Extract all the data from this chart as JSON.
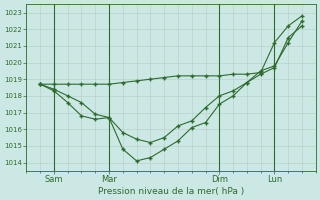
{
  "background_color": "#cce8e4",
  "grid_major_color": "#b8d4d0",
  "grid_minor_color": "#d4e8e4",
  "line_color": "#2d6b2d",
  "title": "Pression niveau de la mer( hPa )",
  "ylim": [
    1013.5,
    1023.5
  ],
  "yticks": [
    1014,
    1015,
    1016,
    1017,
    1018,
    1019,
    1020,
    1021,
    1022,
    1023
  ],
  "xlim": [
    0,
    10.5
  ],
  "xtick_positions": [
    1,
    3,
    7,
    9
  ],
  "xtick_labels": [
    "Sam",
    "Mar",
    "Dim",
    "Lun"
  ],
  "vline_positions": [
    1,
    3,
    7,
    9
  ],
  "line1_x": [
    0.5,
    1.0,
    1.5,
    2.0,
    2.5,
    3.0,
    3.5,
    4.0,
    4.5,
    5.0,
    5.5,
    6.0,
    6.5,
    7.0,
    7.5,
    8.0,
    8.5,
    9.0,
    9.5,
    10.0
  ],
  "line1_y": [
    1018.7,
    1018.7,
    1018.7,
    1018.7,
    1018.7,
    1018.7,
    1018.8,
    1018.9,
    1019.0,
    1019.1,
    1019.2,
    1019.2,
    1019.2,
    1019.2,
    1019.3,
    1019.3,
    1019.4,
    1021.2,
    1022.2,
    1022.8
  ],
  "line2_x": [
    0.5,
    1.0,
    1.5,
    2.0,
    2.5,
    3.0,
    3.5,
    4.0,
    4.5,
    5.0,
    5.5,
    6.0,
    6.5,
    7.0,
    7.5,
    8.0,
    8.5,
    9.0,
    9.5,
    10.0
  ],
  "line2_y": [
    1018.7,
    1018.4,
    1018.0,
    1017.6,
    1016.9,
    1016.7,
    1015.8,
    1015.4,
    1015.2,
    1015.5,
    1016.2,
    1016.5,
    1017.3,
    1018.0,
    1018.3,
    1018.8,
    1019.3,
    1019.7,
    1021.5,
    1022.2
  ],
  "line3_x": [
    0.5,
    1.0,
    1.5,
    2.0,
    2.5,
    3.0,
    3.5,
    4.0,
    4.5,
    5.0,
    5.5,
    6.0,
    6.5,
    7.0,
    7.5,
    8.0,
    8.5,
    9.0,
    9.5,
    10.0
  ],
  "line3_y": [
    1018.7,
    1018.3,
    1017.6,
    1016.8,
    1016.6,
    1016.7,
    1014.8,
    1014.1,
    1014.3,
    1014.8,
    1015.3,
    1016.1,
    1016.4,
    1017.5,
    1018.0,
    1018.8,
    1019.5,
    1019.8,
    1021.2,
    1022.5
  ]
}
